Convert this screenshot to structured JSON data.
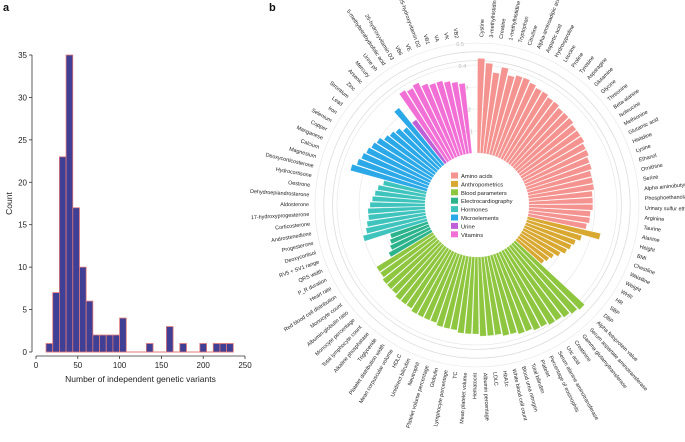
{
  "panels": {
    "a": "a",
    "b": "b"
  },
  "chart_data": [
    {
      "type": "bar",
      "panel": "a",
      "title": "",
      "xlabel": "Number of independent genetic variants",
      "ylabel": "Count",
      "xlim": [
        0,
        250
      ],
      "ylim": [
        0,
        35
      ],
      "xticks": [
        0,
        50,
        100,
        150,
        200,
        250
      ],
      "yticks": [
        0,
        5,
        10,
        15,
        20,
        25,
        30,
        35
      ],
      "bin_width": 8,
      "bins": [
        {
          "start": 12,
          "count": 1
        },
        {
          "start": 20,
          "count": 7
        },
        {
          "start": 28,
          "count": 23
        },
        {
          "start": 36,
          "count": 35
        },
        {
          "start": 44,
          "count": 17
        },
        {
          "start": 52,
          "count": 10
        },
        {
          "start": 60,
          "count": 6
        },
        {
          "start": 68,
          "count": 2
        },
        {
          "start": 76,
          "count": 2
        },
        {
          "start": 84,
          "count": 2
        },
        {
          "start": 92,
          "count": 2
        },
        {
          "start": 100,
          "count": 4
        },
        {
          "start": 108,
          "count": 0
        },
        {
          "start": 116,
          "count": 0
        },
        {
          "start": 124,
          "count": 0
        },
        {
          "start": 132,
          "count": 1
        },
        {
          "start": 140,
          "count": 0
        },
        {
          "start": 148,
          "count": 0
        },
        {
          "start": 156,
          "count": 3
        },
        {
          "start": 164,
          "count": 0
        },
        {
          "start": 172,
          "count": 1
        },
        {
          "start": 180,
          "count": 0
        },
        {
          "start": 188,
          "count": 0
        },
        {
          "start": 196,
          "count": 1
        },
        {
          "start": 204,
          "count": 0
        },
        {
          "start": 212,
          "count": 1
        },
        {
          "start": 220,
          "count": 1
        },
        {
          "start": 228,
          "count": 1
        }
      ],
      "colors": {
        "fill": "#3f3f95",
        "stroke": "#e07a7a",
        "axis": "#333333"
      }
    },
    {
      "type": "circular-bar",
      "panel": "b",
      "title": "",
      "rlim": [
        0,
        0.5
      ],
      "rticks": [
        0.1,
        0.2,
        0.3,
        0.4,
        0.5
      ],
      "rtick_labels": [
        "0.1",
        "0.2",
        "0.3",
        "0.4",
        "0.5"
      ],
      "legend_position": "center",
      "groups": [
        {
          "name": "Amino acids",
          "color": "#f4938f",
          "items": [
            {
              "label": "Cystine",
              "value": 0.43
            },
            {
              "label": "3-methylhistidine",
              "value": 0.41
            },
            {
              "label": "Creatine",
              "value": 0.37
            },
            {
              "label": "1-methylhistidine",
              "value": 0.4
            },
            {
              "label": "Tryptophan",
              "value": 0.37
            },
            {
              "label": "Citrulline",
              "value": 0.38
            },
            {
              "label": "Alpha-aminoadipic acid",
              "value": 0.38
            },
            {
              "label": "Aspartic acid",
              "value": 0.37
            },
            {
              "label": "Hydroxyproline",
              "value": 0.36
            },
            {
              "label": "Leucine",
              "value": 0.36
            },
            {
              "label": "Proline",
              "value": 0.35
            },
            {
              "label": "Tyrosine",
              "value": 0.35
            },
            {
              "label": "Asparagine",
              "value": 0.34
            },
            {
              "label": "Glutamine",
              "value": 0.34
            },
            {
              "label": "Glycine",
              "value": 0.34
            },
            {
              "label": "Threonine",
              "value": 0.33
            },
            {
              "label": "Beta-alanine",
              "value": 0.33
            },
            {
              "label": "Isoleucine",
              "value": 0.33
            },
            {
              "label": "Methionine",
              "value": 0.32
            },
            {
              "label": "Glutamic acid",
              "value": 0.32
            },
            {
              "label": "Histidine",
              "value": 0.31
            },
            {
              "label": "Lysine",
              "value": 0.31
            },
            {
              "label": "Ethanol",
              "value": 0.3
            },
            {
              "label": "Ornithine",
              "value": 0.3
            },
            {
              "label": "Serine",
              "value": 0.3
            },
            {
              "label": "Alpha aminobutyric acid",
              "value": 0.29
            },
            {
              "label": "Phosphoethanolamine",
              "value": 0.29
            },
            {
              "label": "Urinary sulfur ether",
              "value": 0.29
            },
            {
              "label": "Arginine",
              "value": 0.28
            },
            {
              "label": "Taurine",
              "value": 0.28
            },
            {
              "label": "Alanine",
              "value": 0.27
            }
          ]
        },
        {
          "name": "Anthropometrics",
          "color": "#d9a830",
          "items": [
            {
              "label": "Height",
              "value": 0.34
            },
            {
              "label": "BMI",
              "value": 0.26
            },
            {
              "label": "Chestline",
              "value": 0.24
            },
            {
              "label": "Waistline",
              "value": 0.23
            },
            {
              "label": "Weight",
              "value": 0.22
            },
            {
              "label": "WHR",
              "value": 0.2
            },
            {
              "label": "HR",
              "value": 0.18
            },
            {
              "label": "SBP",
              "value": 0.17
            },
            {
              "label": "DBP",
              "value": 0.16
            }
          ]
        },
        {
          "name": "Blood parameters",
          "color": "#8fc63f",
          "items": [
            {
              "label": "Alpha fetoprotein value",
              "value": 0.43
            },
            {
              "label": "Serum aspartate aminotransferase",
              "value": 0.42
            },
            {
              "label": "Gamma glutamyltransferase",
              "value": 0.41
            },
            {
              "label": "Creatinine",
              "value": 0.4
            },
            {
              "label": "Uric acid",
              "value": 0.4
            },
            {
              "label": "Serum alanine aminotransferase",
              "value": 0.39
            },
            {
              "label": "Percentage of eosinophils",
              "value": 0.39
            },
            {
              "label": "Platelet",
              "value": 0.38
            },
            {
              "label": "Total bilirubin",
              "value": 0.38
            },
            {
              "label": "Blood urea nitrogen",
              "value": 0.37
            },
            {
              "label": "White blood cell count",
              "value": 0.37
            },
            {
              "label": "HbA1c",
              "value": 0.36
            },
            {
              "label": "LDLC",
              "value": 0.36
            },
            {
              "label": "Albumin percentage",
              "value": 0.36
            },
            {
              "label": "Hematocrit",
              "value": 0.35
            },
            {
              "label": "Mean platelet volume",
              "value": 0.35
            },
            {
              "label": "TC",
              "value": 0.35
            },
            {
              "label": "Lymphocyte percentage",
              "value": 0.34
            },
            {
              "label": "Globulin",
              "value": 0.34
            },
            {
              "label": "Platelet volume percentage",
              "value": 0.34
            },
            {
              "label": "Neutrophil",
              "value": 0.33
            },
            {
              "label": "Unidirect bilirubin",
              "value": 0.33
            },
            {
              "label": "HDLC",
              "value": 0.33
            },
            {
              "label": "Mean corpuscular volume",
              "value": 0.33
            },
            {
              "label": "Platelet distribution width",
              "value": 0.32
            },
            {
              "label": "Triglyceride",
              "value": 0.32
            },
            {
              "label": "Alkaline phosphatase",
              "value": 0.32
            },
            {
              "label": "Total lymphocyte count",
              "value": 0.31
            },
            {
              "label": "Monocyte percentage",
              "value": 0.31
            },
            {
              "label": "Albumin-globulin ratio",
              "value": 0.31
            },
            {
              "label": "Monocyte count",
              "value": 0.3
            },
            {
              "label": "Red blood cell distribution",
              "value": 0.3
            }
          ]
        },
        {
          "name": "Electrocardiography",
          "color": "#2bb38c",
          "items": [
            {
              "label": "Heart rate",
              "value": 0.22
            },
            {
              "label": "P_R duration",
              "value": 0.2
            },
            {
              "label": "QRS width",
              "value": 0.19
            },
            {
              "label": "RV5 + SV1 range",
              "value": 0.18
            }
          ]
        },
        {
          "name": "Hormones",
          "color": "#3ec4bd",
          "items": [
            {
              "label": "Deoxycortisol",
              "value": 0.3
            },
            {
              "label": "Progesterone",
              "value": 0.28
            },
            {
              "label": "Androstenedione",
              "value": 0.27
            },
            {
              "label": "Corticosterone",
              "value": 0.26
            },
            {
              "label": "17-hydroxyprogesterone",
              "value": 0.26
            },
            {
              "label": "Aldosterone",
              "value": 0.25
            },
            {
              "label": "Dehydroepiandrosterone",
              "value": 0.24
            },
            {
              "label": "Oestrone",
              "value": 0.23
            },
            {
              "label": "Hydrocortisone",
              "value": 0.22
            },
            {
              "label": "Deoxycorticosterone",
              "value": 0.2
            }
          ]
        },
        {
          "name": "Microelements",
          "color": "#2aa8e8",
          "items": [
            {
              "label": "Magnesium",
              "value": 0.36
            },
            {
              "label": "Calcium",
              "value": 0.34
            },
            {
              "label": "Manganese",
              "value": 0.33
            },
            {
              "label": "Copper",
              "value": 0.32
            },
            {
              "label": "Selenium",
              "value": 0.31
            },
            {
              "label": "Iron",
              "value": 0.3
            },
            {
              "label": "Lead",
              "value": 0.28
            },
            {
              "label": "Strontium",
              "value": 0.27
            },
            {
              "label": "Zinc",
              "value": 0.26
            },
            {
              "label": "Arsenic",
              "value": 0.24
            },
            {
              "label": "Mercury",
              "value": 0.33
            }
          ]
        },
        {
          "name": "Urine",
          "color": "#c060d8",
          "items": [
            {
              "label": "Urine ph",
              "value": 0.24
            }
          ]
        },
        {
          "name": "Vitamins",
          "color": "#f26fd6",
          "items": [
            {
              "label": "5-methyltetrahydrofolic acid",
              "value": 0.38
            },
            {
              "label": "25-hydroxyvitamin D3",
              "value": 0.37
            },
            {
              "label": "VB6",
              "value": 0.38
            },
            {
              "label": "VE",
              "value": 0.36
            },
            {
              "label": "25-hydroxyvitamin D2",
              "value": 0.35
            },
            {
              "label": "VB1",
              "value": 0.35
            },
            {
              "label": "VA",
              "value": 0.34
            },
            {
              "label": "VK",
              "value": 0.33
            },
            {
              "label": "VB2",
              "value": 0.32
            }
          ]
        }
      ]
    }
  ]
}
